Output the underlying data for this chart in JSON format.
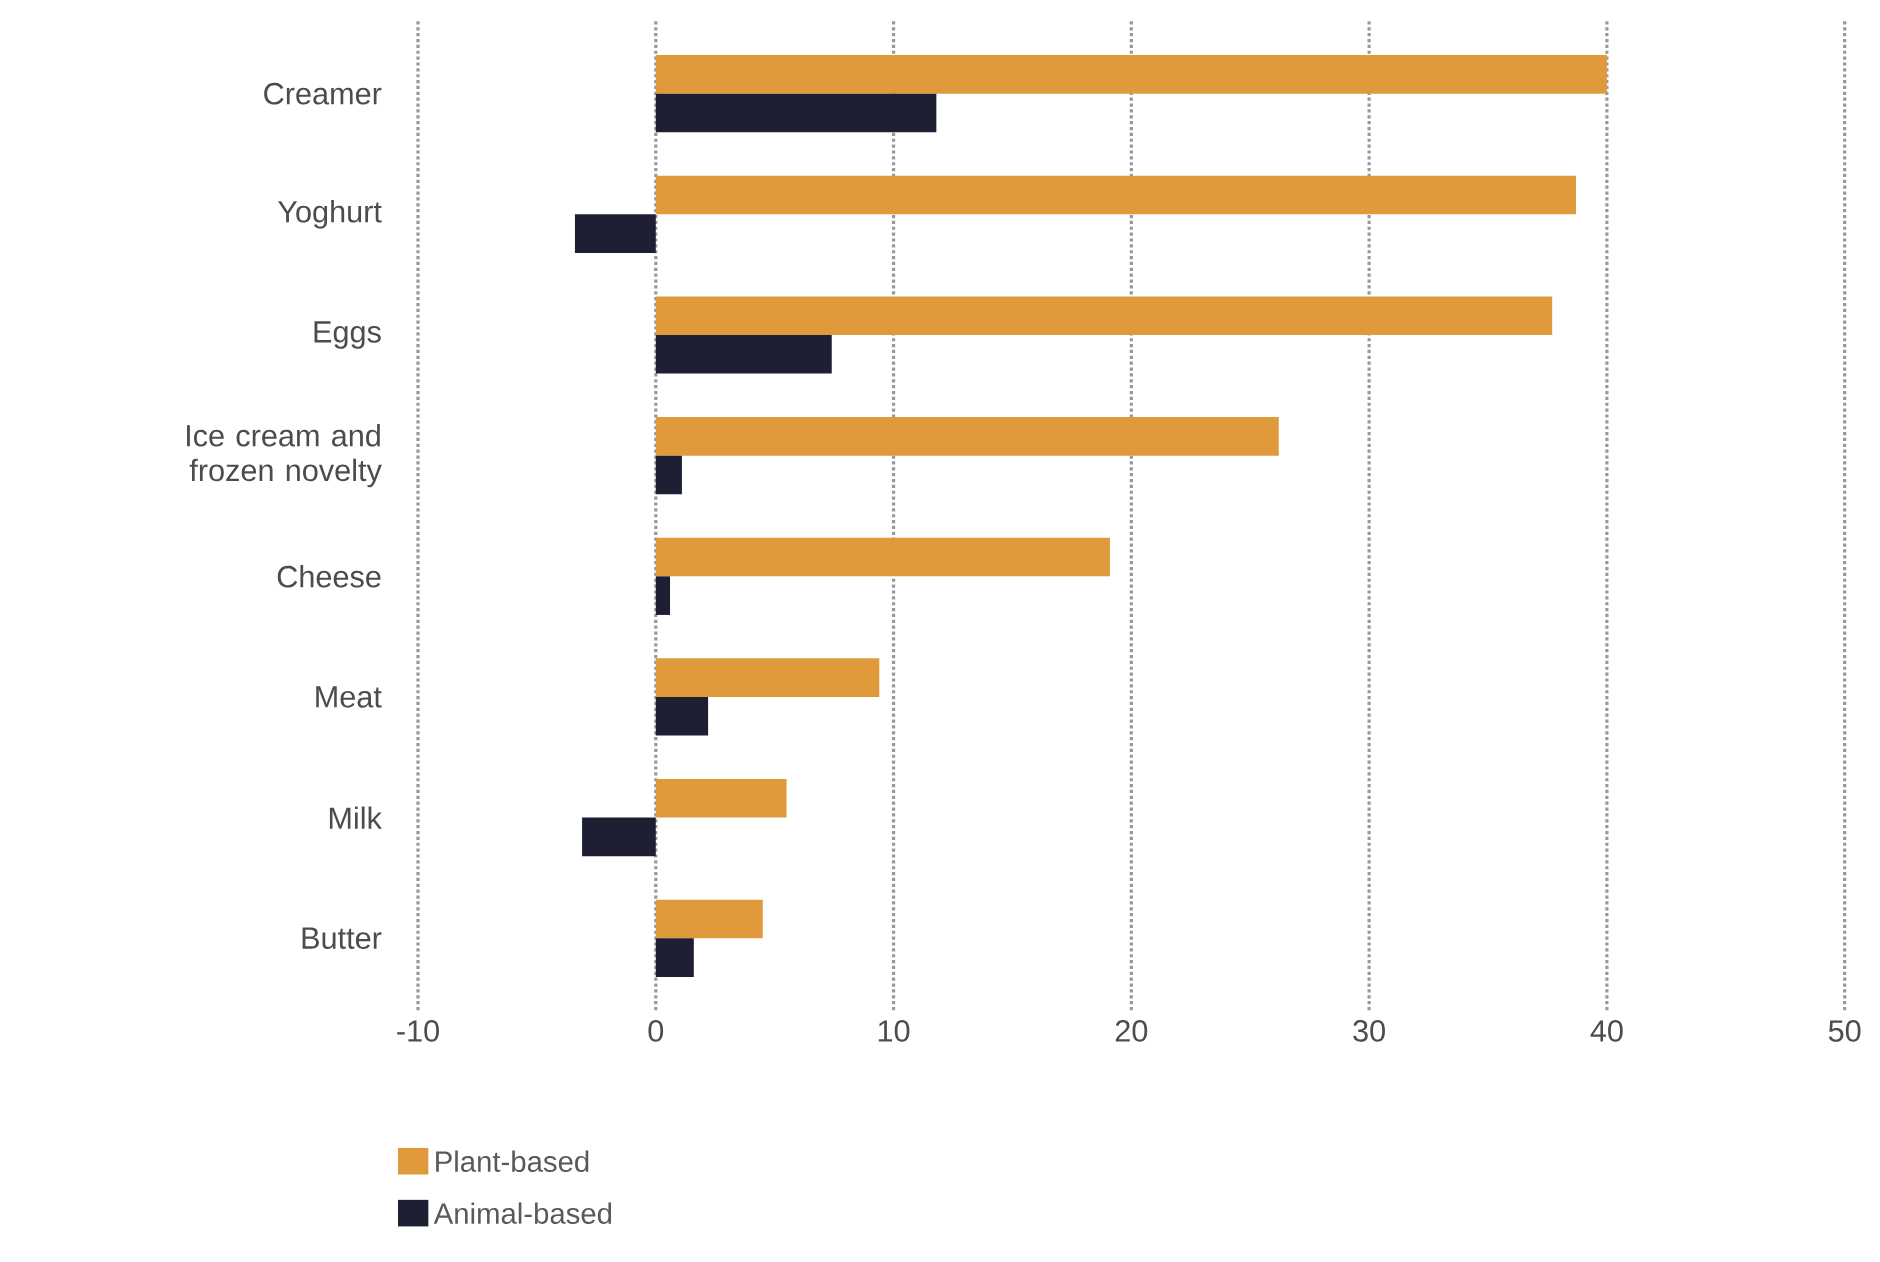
{
  "chart_data": {
    "type": "bar",
    "orientation": "horizontal",
    "categories": [
      "Creamer",
      "Yoghurt",
      "Eggs",
      "Ice cream and frozen novelty",
      "Cheese",
      "Meat",
      "Milk",
      "Butter"
    ],
    "series": [
      {
        "name": "Plant-based",
        "color": "#e09a3c",
        "values": [
          40,
          38.7,
          37.7,
          26.2,
          19.1,
          9.4,
          5.5,
          4.5
        ]
      },
      {
        "name": "Animal-based",
        "color": "#1e1f33",
        "values": [
          11.8,
          -3.4,
          7.4,
          1.1,
          0.6,
          2.2,
          -3.1,
          1.6
        ]
      }
    ],
    "xlim": [
      -10,
      50
    ],
    "xticks": [
      -10,
      0,
      10,
      20,
      30,
      40,
      50
    ],
    "grid": "x",
    "legend": "bottom"
  }
}
